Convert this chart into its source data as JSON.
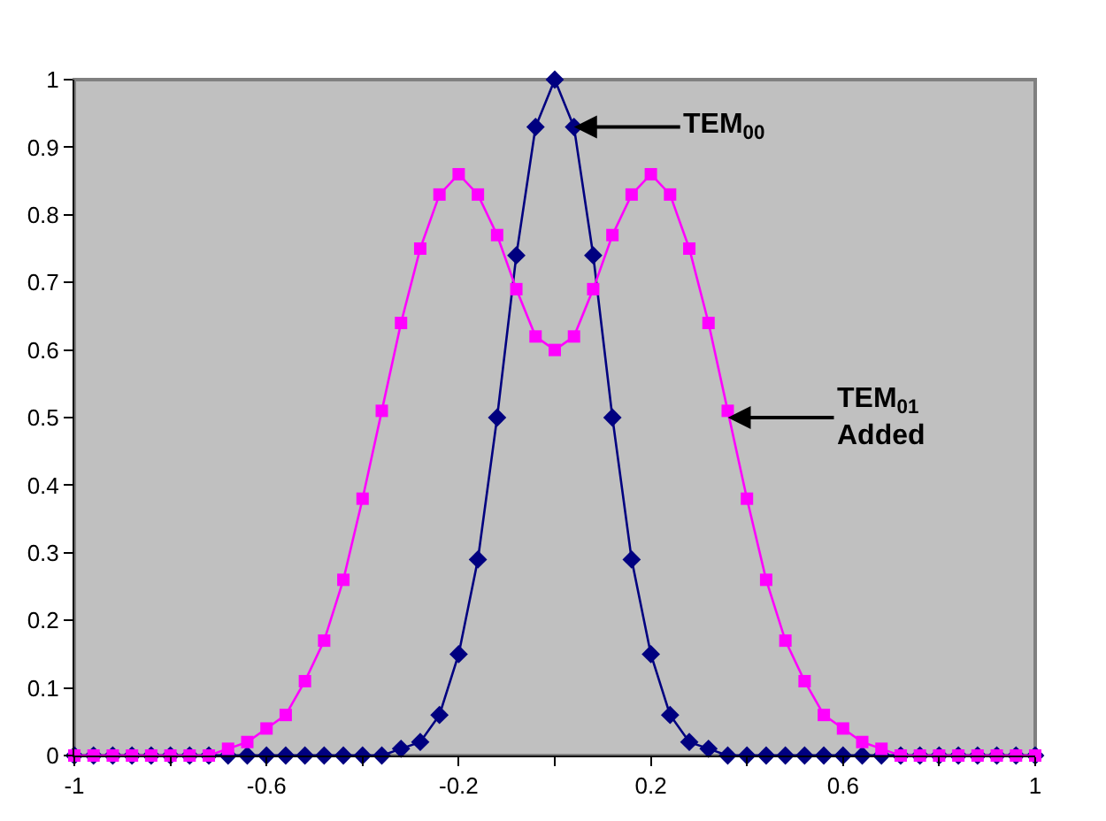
{
  "chart_data": {
    "type": "line",
    "x": [
      -1,
      -0.96,
      -0.92,
      -0.88,
      -0.84,
      -0.8,
      -0.76,
      -0.72,
      -0.68,
      -0.64,
      -0.6,
      -0.56,
      -0.52,
      -0.48,
      -0.44,
      -0.4,
      -0.36,
      -0.32,
      -0.28,
      -0.24,
      -0.2,
      -0.16,
      -0.12,
      -0.08,
      -0.04,
      0,
      0.04,
      0.08,
      0.12,
      0.16,
      0.2,
      0.24,
      0.28,
      0.32,
      0.36,
      0.4,
      0.44,
      0.48,
      0.52,
      0.56,
      0.6,
      0.64,
      0.68,
      0.72,
      0.76,
      0.8,
      0.84,
      0.88,
      0.92,
      0.96,
      1
    ],
    "series": [
      {
        "color": "#000080",
        "marker": "diamond",
        "values": [
          0,
          0,
          0,
          0,
          0,
          0,
          0,
          0,
          0,
          0,
          0,
          0,
          0,
          0,
          0,
          0,
          0,
          0.01,
          0.02,
          0.06,
          0.15,
          0.29,
          0.5,
          0.74,
          0.93,
          1,
          0.93,
          0.74,
          0.5,
          0.29,
          0.15,
          0.06,
          0.02,
          0.01,
          0,
          0,
          0,
          0,
          0,
          0,
          0,
          0,
          0,
          0,
          0,
          0,
          0,
          0,
          0,
          0,
          0
        ]
      },
      {
        "color": "#ff00ff",
        "marker": "square",
        "values": [
          0,
          0,
          0,
          0,
          0,
          0,
          0,
          0,
          0.01,
          0.02,
          0.04,
          0.06,
          0.11,
          0.17,
          0.26,
          0.38,
          0.51,
          0.64,
          0.75,
          0.83,
          0.86,
          0.83,
          0.77,
          0.69,
          0.62,
          0.6,
          0.62,
          0.69,
          0.77,
          0.83,
          0.86,
          0.83,
          0.75,
          0.64,
          0.51,
          0.38,
          0.26,
          0.17,
          0.11,
          0.06,
          0.04,
          0.02,
          0.01,
          0,
          0,
          0,
          0,
          0,
          0,
          0,
          0
        ]
      }
    ],
    "xlim": [
      -1,
      1
    ],
    "xticks": [
      -1,
      {
        "value": -0.8,
        "label": null
      },
      -0.6,
      {
        "value": -0.4,
        "label": null
      },
      -0.2,
      {
        "value": 0,
        "label": null
      },
      0.2,
      {
        "value": 0.4,
        "label": null
      },
      0.6,
      {
        "value": 0.8,
        "label": null
      },
      1
    ],
    "ylim": [
      0,
      1
    ],
    "yticks": [
      0,
      0.1,
      0.2,
      0.3,
      0.4,
      0.5,
      0.6,
      0.7,
      0.8,
      0.9,
      1
    ],
    "grid": false,
    "legend": false,
    "line_style": "solid",
    "annotations": [
      {
        "text": "TEM$_{00}$",
        "x": 0.04,
        "y": 0.93
      },
      {
        "text": "TEM$_{01}$\nAdded",
        "x": 0.36,
        "y": 0.5
      }
    ]
  }
}
